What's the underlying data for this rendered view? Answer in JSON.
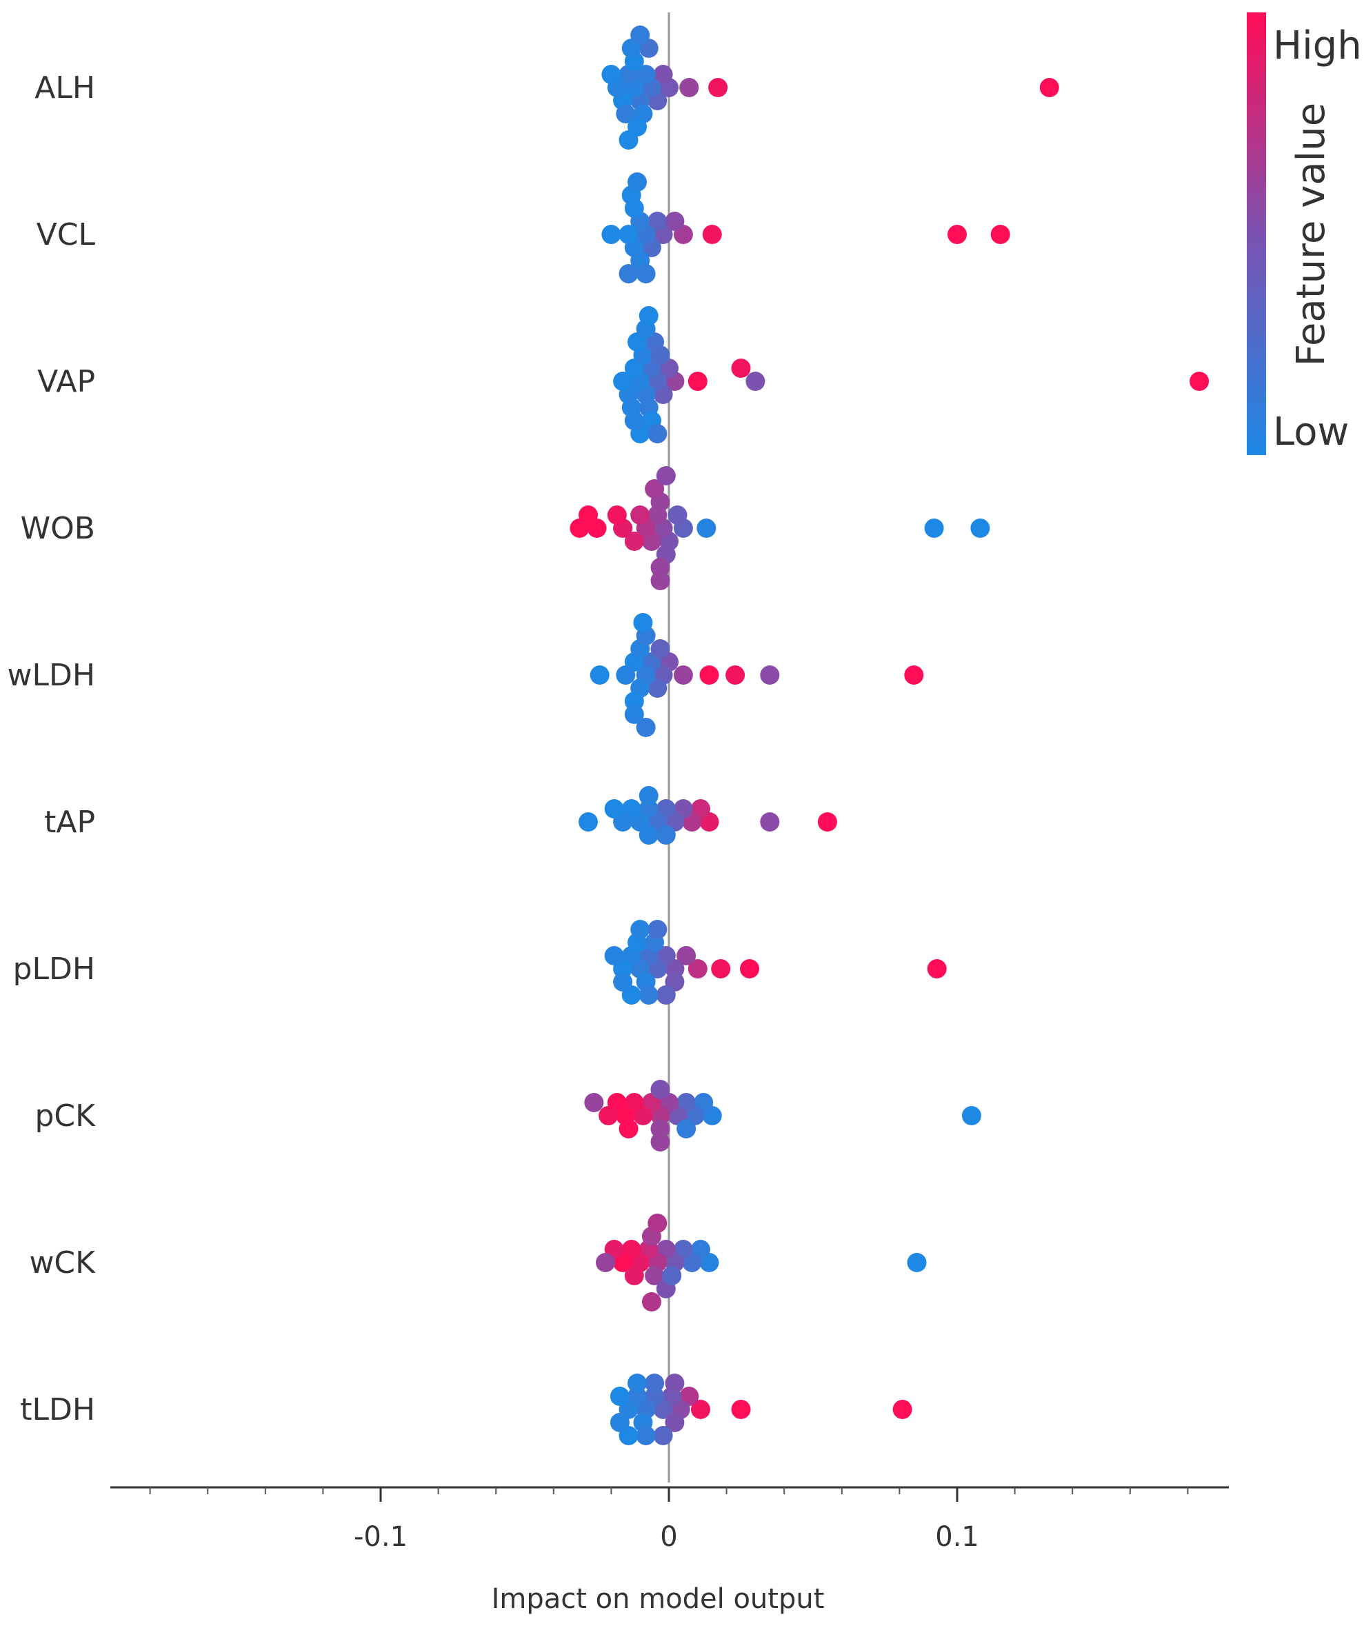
{
  "chart_data": {
    "type": "scatter",
    "subtype": "shap-beeswarm",
    "xlabel": "Impact on model output",
    "xlim": [
      -0.195,
      0.195
    ],
    "xticks": [
      -0.1,
      0,
      0.1
    ],
    "xtick_labels": [
      "-0.1",
      "0",
      "0.1"
    ],
    "colorbar": {
      "title": "Feature value",
      "high_label": "High",
      "low_label": "Low",
      "high_color": "#ff0d57",
      "low_color": "#1e88e5"
    },
    "features": [
      {
        "name": "ALH",
        "points": [
          {
            "x": 0.132,
            "v": 1.0
          },
          {
            "x": 0.017,
            "v": 0.95
          },
          {
            "x": 0.007,
            "v": 0.6
          },
          {
            "x": 0.0,
            "v": 0.45
          },
          {
            "x": -0.002,
            "v": 0.5
          },
          {
            "x": -0.004,
            "v": 0.35
          },
          {
            "x": -0.006,
            "v": 0.2
          },
          {
            "x": -0.008,
            "v": 0.1
          },
          {
            "x": -0.01,
            "v": 0.15
          },
          {
            "x": -0.012,
            "v": 0.05
          },
          {
            "x": -0.014,
            "v": 0.1
          },
          {
            "x": -0.016,
            "v": 0.0
          },
          {
            "x": -0.018,
            "v": 0.05
          },
          {
            "x": -0.02,
            "v": 0.0
          },
          {
            "x": -0.012,
            "v": 0.0
          },
          {
            "x": -0.009,
            "v": 0.05
          },
          {
            "x": -0.007,
            "v": 0.2
          },
          {
            "x": -0.015,
            "v": 0.1
          },
          {
            "x": -0.011,
            "v": 0.0
          },
          {
            "x": -0.013,
            "v": 0.05
          },
          {
            "x": -0.01,
            "v": 0.1
          },
          {
            "x": -0.014,
            "v": 0.0
          }
        ]
      },
      {
        "name": "VCL",
        "points": [
          {
            "x": 0.115,
            "v": 1.0
          },
          {
            "x": 0.1,
            "v": 1.0
          },
          {
            "x": 0.015,
            "v": 0.95
          },
          {
            "x": 0.005,
            "v": 0.65
          },
          {
            "x": 0.002,
            "v": 0.55
          },
          {
            "x": -0.002,
            "v": 0.45
          },
          {
            "x": -0.004,
            "v": 0.35
          },
          {
            "x": -0.006,
            "v": 0.25
          },
          {
            "x": -0.008,
            "v": 0.15
          },
          {
            "x": -0.01,
            "v": 0.1
          },
          {
            "x": -0.012,
            "v": 0.05
          },
          {
            "x": -0.014,
            "v": 0.0
          },
          {
            "x": -0.02,
            "v": 0.0
          },
          {
            "x": -0.012,
            "v": 0.0
          },
          {
            "x": -0.01,
            "v": 0.05
          },
          {
            "x": -0.013,
            "v": 0.0
          },
          {
            "x": -0.008,
            "v": 0.1
          },
          {
            "x": -0.011,
            "v": 0.05
          },
          {
            "x": -0.014,
            "v": 0.1
          }
        ]
      },
      {
        "name": "VAP",
        "points": [
          {
            "x": 0.184,
            "v": 1.0
          },
          {
            "x": 0.03,
            "v": 0.5
          },
          {
            "x": 0.025,
            "v": 0.95
          },
          {
            "x": 0.01,
            "v": 1.0
          },
          {
            "x": 0.002,
            "v": 0.6
          },
          {
            "x": 0.0,
            "v": 0.45
          },
          {
            "x": -0.002,
            "v": 0.4
          },
          {
            "x": -0.004,
            "v": 0.3
          },
          {
            "x": -0.006,
            "v": 0.2
          },
          {
            "x": -0.008,
            "v": 0.1
          },
          {
            "x": -0.01,
            "v": 0.05
          },
          {
            "x": -0.012,
            "v": 0.0
          },
          {
            "x": -0.014,
            "v": 0.05
          },
          {
            "x": -0.016,
            "v": 0.0
          },
          {
            "x": -0.009,
            "v": 0.05
          },
          {
            "x": -0.007,
            "v": 0.1
          },
          {
            "x": -0.005,
            "v": 0.2
          },
          {
            "x": -0.011,
            "v": 0.0
          },
          {
            "x": -0.013,
            "v": 0.05
          },
          {
            "x": -0.006,
            "v": 0.0
          },
          {
            "x": -0.008,
            "v": 0.05
          },
          {
            "x": -0.004,
            "v": 0.15
          },
          {
            "x": -0.01,
            "v": 0.0
          },
          {
            "x": -0.003,
            "v": 0.25
          },
          {
            "x": -0.012,
            "v": 0.05
          },
          {
            "x": -0.007,
            "v": 0.0
          }
        ]
      },
      {
        "name": "WOB",
        "points": [
          {
            "x": 0.108,
            "v": 0.0
          },
          {
            "x": 0.092,
            "v": 0.0
          },
          {
            "x": 0.013,
            "v": 0.05
          },
          {
            "x": 0.005,
            "v": 0.35
          },
          {
            "x": 0.003,
            "v": 0.4
          },
          {
            "x": 0.0,
            "v": 0.5
          },
          {
            "x": -0.002,
            "v": 0.55
          },
          {
            "x": -0.004,
            "v": 0.6
          },
          {
            "x": -0.006,
            "v": 0.65
          },
          {
            "x": -0.008,
            "v": 0.7
          },
          {
            "x": -0.01,
            "v": 0.8
          },
          {
            "x": -0.012,
            "v": 0.85
          },
          {
            "x": -0.016,
            "v": 0.9
          },
          {
            "x": -0.018,
            "v": 0.95
          },
          {
            "x": -0.025,
            "v": 1.0
          },
          {
            "x": -0.028,
            "v": 1.0
          },
          {
            "x": -0.031,
            "v": 1.0
          },
          {
            "x": -0.003,
            "v": 0.6
          },
          {
            "x": -0.001,
            "v": 0.5
          },
          {
            "x": -0.005,
            "v": 0.65
          },
          {
            "x": -0.003,
            "v": 0.6
          },
          {
            "x": -0.001,
            "v": 0.55
          },
          {
            "x": -0.003,
            "v": 0.6
          }
        ]
      },
      {
        "name": "wLDH",
        "points": [
          {
            "x": 0.085,
            "v": 1.0
          },
          {
            "x": 0.035,
            "v": 0.55
          },
          {
            "x": 0.023,
            "v": 0.95
          },
          {
            "x": 0.014,
            "v": 1.0
          },
          {
            "x": 0.005,
            "v": 0.6
          },
          {
            "x": 0.0,
            "v": 0.5
          },
          {
            "x": -0.002,
            "v": 0.4
          },
          {
            "x": -0.004,
            "v": 0.3
          },
          {
            "x": -0.006,
            "v": 0.2
          },
          {
            "x": -0.008,
            "v": 0.1
          },
          {
            "x": -0.01,
            "v": 0.05
          },
          {
            "x": -0.012,
            "v": 0.0
          },
          {
            "x": -0.015,
            "v": 0.05
          },
          {
            "x": -0.024,
            "v": 0.0
          },
          {
            "x": -0.01,
            "v": 0.05
          },
          {
            "x": -0.012,
            "v": 0.0
          },
          {
            "x": -0.008,
            "v": 0.1
          },
          {
            "x": -0.003,
            "v": 0.35
          },
          {
            "x": -0.012,
            "v": 0.05
          },
          {
            "x": -0.009,
            "v": 0.0
          },
          {
            "x": -0.008,
            "v": 0.1
          }
        ]
      },
      {
        "name": "tAP",
        "points": [
          {
            "x": 0.055,
            "v": 1.0
          },
          {
            "x": 0.035,
            "v": 0.55
          },
          {
            "x": 0.014,
            "v": 0.9
          },
          {
            "x": 0.011,
            "v": 0.8
          },
          {
            "x": 0.008,
            "v": 0.7
          },
          {
            "x": 0.005,
            "v": 0.5
          },
          {
            "x": 0.002,
            "v": 0.4
          },
          {
            "x": -0.001,
            "v": 0.3
          },
          {
            "x": -0.004,
            "v": 0.2
          },
          {
            "x": -0.007,
            "v": 0.1
          },
          {
            "x": -0.01,
            "v": 0.05
          },
          {
            "x": -0.013,
            "v": 0.0
          },
          {
            "x": -0.016,
            "v": 0.05
          },
          {
            "x": -0.019,
            "v": 0.0
          },
          {
            "x": -0.028,
            "v": 0.0
          },
          {
            "x": -0.007,
            "v": 0.05
          },
          {
            "x": -0.007,
            "v": 0.05
          },
          {
            "x": -0.001,
            "v": 0.1
          }
        ]
      },
      {
        "name": "pLDH",
        "points": [
          {
            "x": 0.093,
            "v": 1.0
          },
          {
            "x": 0.028,
            "v": 1.0
          },
          {
            "x": 0.018,
            "v": 0.95
          },
          {
            "x": 0.01,
            "v": 0.75
          },
          {
            "x": 0.006,
            "v": 0.6
          },
          {
            "x": 0.002,
            "v": 0.5
          },
          {
            "x": -0.001,
            "v": 0.4
          },
          {
            "x": -0.004,
            "v": 0.3
          },
          {
            "x": -0.007,
            "v": 0.2
          },
          {
            "x": -0.01,
            "v": 0.1
          },
          {
            "x": -0.013,
            "v": 0.05
          },
          {
            "x": -0.016,
            "v": 0.0
          },
          {
            "x": -0.019,
            "v": 0.05
          },
          {
            "x": -0.008,
            "v": 0.05
          },
          {
            "x": -0.011,
            "v": 0.0
          },
          {
            "x": -0.005,
            "v": 0.1
          },
          {
            "x": 0.002,
            "v": 0.45
          },
          {
            "x": -0.001,
            "v": 0.35
          },
          {
            "x": -0.004,
            "v": 0.2
          },
          {
            "x": -0.007,
            "v": 0.1
          },
          {
            "x": -0.01,
            "v": 0.05
          },
          {
            "x": -0.013,
            "v": 0.0
          },
          {
            "x": -0.016,
            "v": 0.05
          }
        ]
      },
      {
        "name": "pCK",
        "points": [
          {
            "x": 0.105,
            "v": 0.0
          },
          {
            "x": 0.015,
            "v": 0.05
          },
          {
            "x": 0.012,
            "v": 0.1
          },
          {
            "x": 0.009,
            "v": 0.2
          },
          {
            "x": 0.006,
            "v": 0.3
          },
          {
            "x": 0.003,
            "v": 0.45
          },
          {
            "x": 0.0,
            "v": 0.6
          },
          {
            "x": -0.003,
            "v": 0.7
          },
          {
            "x": -0.006,
            "v": 0.8
          },
          {
            "x": -0.009,
            "v": 0.9
          },
          {
            "x": -0.012,
            "v": 0.95
          },
          {
            "x": -0.015,
            "v": 1.0
          },
          {
            "x": -0.018,
            "v": 1.0
          },
          {
            "x": -0.021,
            "v": 0.95
          },
          {
            "x": -0.026,
            "v": 0.6
          },
          {
            "x": -0.003,
            "v": 0.6
          },
          {
            "x": -0.014,
            "v": 1.0
          },
          {
            "x": -0.003,
            "v": 0.5
          },
          {
            "x": 0.006,
            "v": 0.1
          },
          {
            "x": -0.003,
            "v": 0.6
          }
        ]
      },
      {
        "name": "wCK",
        "points": [
          {
            "x": 0.086,
            "v": 0.0
          },
          {
            "x": 0.014,
            "v": 0.05
          },
          {
            "x": 0.011,
            "v": 0.1
          },
          {
            "x": 0.008,
            "v": 0.2
          },
          {
            "x": 0.005,
            "v": 0.3
          },
          {
            "x": 0.002,
            "v": 0.45
          },
          {
            "x": -0.001,
            "v": 0.55
          },
          {
            "x": -0.004,
            "v": 0.7
          },
          {
            "x": -0.007,
            "v": 0.8
          },
          {
            "x": -0.01,
            "v": 0.9
          },
          {
            "x": -0.013,
            "v": 0.95
          },
          {
            "x": -0.016,
            "v": 1.0
          },
          {
            "x": -0.019,
            "v": 0.9
          },
          {
            "x": -0.022,
            "v": 0.6
          },
          {
            "x": -0.005,
            "v": 0.6
          },
          {
            "x": -0.006,
            "v": 0.65
          },
          {
            "x": -0.001,
            "v": 0.5
          },
          {
            "x": -0.004,
            "v": 0.7
          },
          {
            "x": -0.012,
            "v": 0.9
          },
          {
            "x": 0.001,
            "v": 0.3
          },
          {
            "x": -0.006,
            "v": 0.7
          }
        ]
      },
      {
        "name": "tLDH",
        "points": [
          {
            "x": 0.081,
            "v": 1.0
          },
          {
            "x": 0.025,
            "v": 1.0
          },
          {
            "x": 0.011,
            "v": 0.95
          },
          {
            "x": 0.007,
            "v": 0.7
          },
          {
            "x": 0.004,
            "v": 0.55
          },
          {
            "x": 0.001,
            "v": 0.45
          },
          {
            "x": -0.002,
            "v": 0.35
          },
          {
            "x": -0.005,
            "v": 0.25
          },
          {
            "x": -0.008,
            "v": 0.15
          },
          {
            "x": -0.011,
            "v": 0.1
          },
          {
            "x": -0.014,
            "v": 0.05
          },
          {
            "x": -0.017,
            "v": 0.0
          },
          {
            "x": -0.009,
            "v": 0.05
          },
          {
            "x": 0.002,
            "v": 0.5
          },
          {
            "x": 0.002,
            "v": 0.5
          },
          {
            "x": -0.002,
            "v": 0.3
          },
          {
            "x": -0.005,
            "v": 0.2
          },
          {
            "x": -0.008,
            "v": 0.1
          },
          {
            "x": -0.011,
            "v": 0.05
          },
          {
            "x": -0.014,
            "v": 0.0
          },
          {
            "x": -0.017,
            "v": 0.05
          }
        ]
      }
    ]
  }
}
